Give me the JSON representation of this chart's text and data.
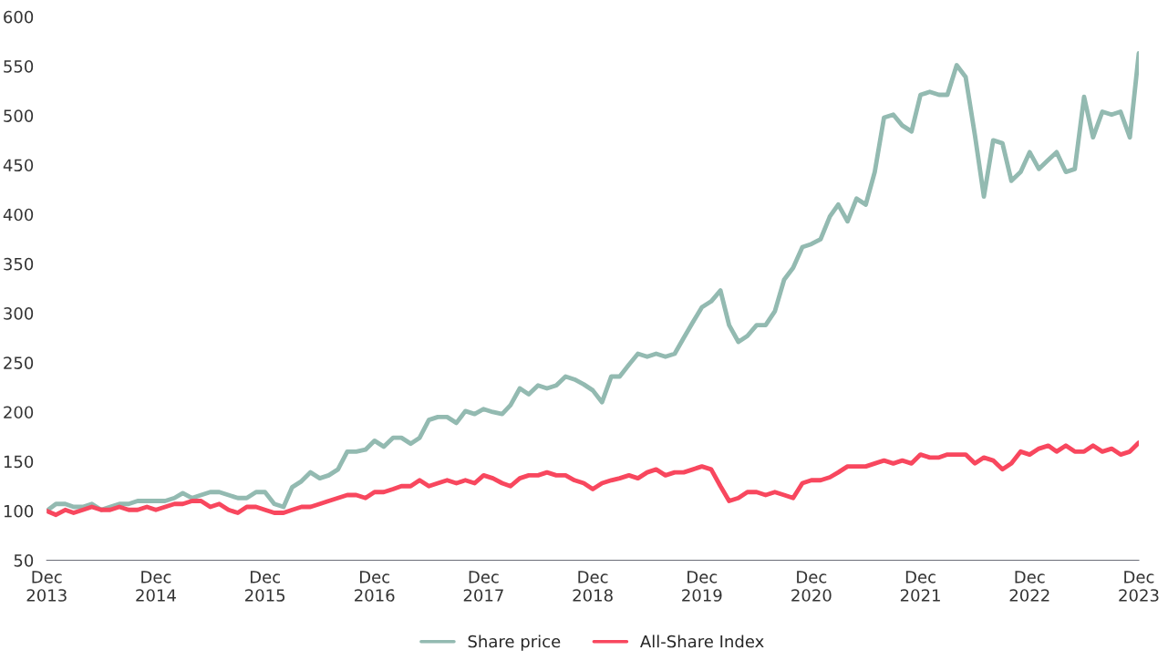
{
  "chart_data": {
    "type": "line",
    "x": [
      "2013-12",
      "2014-01",
      "2014-02",
      "2014-03",
      "2014-04",
      "2014-05",
      "2014-06",
      "2014-07",
      "2014-08",
      "2014-09",
      "2014-10",
      "2014-11",
      "2014-12",
      "2015-01",
      "2015-02",
      "2015-03",
      "2015-04",
      "2015-05",
      "2015-06",
      "2015-07",
      "2015-08",
      "2015-09",
      "2015-10",
      "2015-11",
      "2015-12",
      "2016-01",
      "2016-02",
      "2016-03",
      "2016-04",
      "2016-05",
      "2016-06",
      "2016-07",
      "2016-08",
      "2016-09",
      "2016-10",
      "2016-11",
      "2016-12",
      "2017-01",
      "2017-02",
      "2017-03",
      "2017-04",
      "2017-05",
      "2017-06",
      "2017-07",
      "2017-08",
      "2017-09",
      "2017-10",
      "2017-11",
      "2017-12",
      "2018-01",
      "2018-02",
      "2018-03",
      "2018-04",
      "2018-05",
      "2018-06",
      "2018-07",
      "2018-08",
      "2018-09",
      "2018-10",
      "2018-11",
      "2018-12",
      "2019-01",
      "2019-02",
      "2019-03",
      "2019-04",
      "2019-05",
      "2019-06",
      "2019-07",
      "2019-08",
      "2019-09",
      "2019-10",
      "2019-11",
      "2019-12",
      "2020-01",
      "2020-02",
      "2020-03",
      "2020-04",
      "2020-05",
      "2020-06",
      "2020-07",
      "2020-08",
      "2020-09",
      "2020-10",
      "2020-11",
      "2020-12",
      "2021-01",
      "2021-02",
      "2021-03",
      "2021-04",
      "2021-05",
      "2021-06",
      "2021-07",
      "2021-08",
      "2021-09",
      "2021-10",
      "2021-11",
      "2021-12",
      "2022-01",
      "2022-02",
      "2022-03",
      "2022-04",
      "2022-05",
      "2022-06",
      "2022-07",
      "2022-08",
      "2022-09",
      "2022-10",
      "2022-11",
      "2022-12",
      "2023-01",
      "2023-02",
      "2023-03",
      "2023-04",
      "2023-05",
      "2023-06",
      "2023-07",
      "2023-08",
      "2023-09",
      "2023-10",
      "2023-11",
      "2023-12"
    ],
    "xlim": [
      "2013-12",
      "2023-12"
    ],
    "xticks": [
      {
        "value": "2013-12",
        "label": "Dec\n2013"
      },
      {
        "value": "2014-12",
        "label": "Dec\n2014"
      },
      {
        "value": "2015-12",
        "label": "Dec\n2015"
      },
      {
        "value": "2016-12",
        "label": "Dec\n2016"
      },
      {
        "value": "2017-12",
        "label": "Dec\n2017"
      },
      {
        "value": "2018-12",
        "label": "Dec\n2018"
      },
      {
        "value": "2019-12",
        "label": "Dec\n2019"
      },
      {
        "value": "2020-12",
        "label": "Dec\n2020"
      },
      {
        "value": "2021-12",
        "label": "Dec\n2021"
      },
      {
        "value": "2022-12",
        "label": "Dec\n2022"
      },
      {
        "value": "2023-12",
        "label": "Dec\n2023"
      }
    ],
    "ylim": [
      50,
      600
    ],
    "yticks": [
      50,
      100,
      150,
      200,
      250,
      300,
      350,
      400,
      450,
      500,
      550,
      600
    ],
    "grid": false,
    "legend": "bottom",
    "marker": "none",
    "line_style": "solid",
    "series": [
      {
        "name": "Share price",
        "color": "#93bab1",
        "values": [
          100,
          107,
          107,
          104,
          104,
          107,
          101,
          104,
          107,
          107,
          110,
          110,
          110,
          110,
          113,
          118,
          113,
          116,
          119,
          119,
          116,
          113,
          113,
          119,
          119,
          107,
          104,
          124,
          130,
          139,
          133,
          136,
          142,
          160,
          160,
          162,
          171,
          165,
          174,
          174,
          168,
          174,
          192,
          195,
          195,
          189,
          201,
          198,
          203,
          200,
          198,
          207,
          224,
          218,
          227,
          224,
          227,
          236,
          233,
          228,
          222,
          210,
          236,
          236,
          248,
          259,
          256,
          259,
          256,
          259,
          275,
          291,
          306,
          312,
          323,
          288,
          271,
          277,
          288,
          288,
          302,
          334,
          346,
          367,
          370,
          375,
          398,
          410,
          393,
          416,
          410,
          443,
          498,
          501,
          490,
          484,
          521,
          524,
          521,
          521,
          551,
          539,
          480,
          418,
          475,
          472,
          434,
          443,
          463,
          446,
          455,
          463,
          443,
          446,
          519,
          478,
          504,
          501,
          504,
          478,
          563
        ]
      },
      {
        "name": "All-Share Index",
        "color": "#f8475e",
        "values": [
          100,
          96,
          101,
          98,
          101,
          104,
          101,
          101,
          104,
          101,
          101,
          104,
          101,
          104,
          107,
          107,
          110,
          110,
          104,
          107,
          101,
          98,
          104,
          104,
          101,
          98,
          98,
          101,
          104,
          104,
          107,
          110,
          113,
          116,
          116,
          113,
          119,
          119,
          122,
          125,
          125,
          131,
          125,
          128,
          131,
          128,
          131,
          128,
          136,
          133,
          128,
          125,
          133,
          136,
          136,
          139,
          136,
          136,
          131,
          128,
          122,
          128,
          131,
          133,
          136,
          133,
          139,
          142,
          136,
          139,
          139,
          142,
          145,
          142,
          125,
          110,
          113,
          119,
          119,
          116,
          119,
          116,
          113,
          128,
          131,
          131,
          134,
          139,
          145,
          145,
          145,
          148,
          151,
          148,
          151,
          148,
          157,
          154,
          154,
          157,
          157,
          157,
          148,
          154,
          151,
          142,
          148,
          160,
          157,
          163,
          166,
          160,
          166,
          160,
          160,
          166,
          160,
          163,
          157,
          160,
          169
        ]
      }
    ]
  }
}
